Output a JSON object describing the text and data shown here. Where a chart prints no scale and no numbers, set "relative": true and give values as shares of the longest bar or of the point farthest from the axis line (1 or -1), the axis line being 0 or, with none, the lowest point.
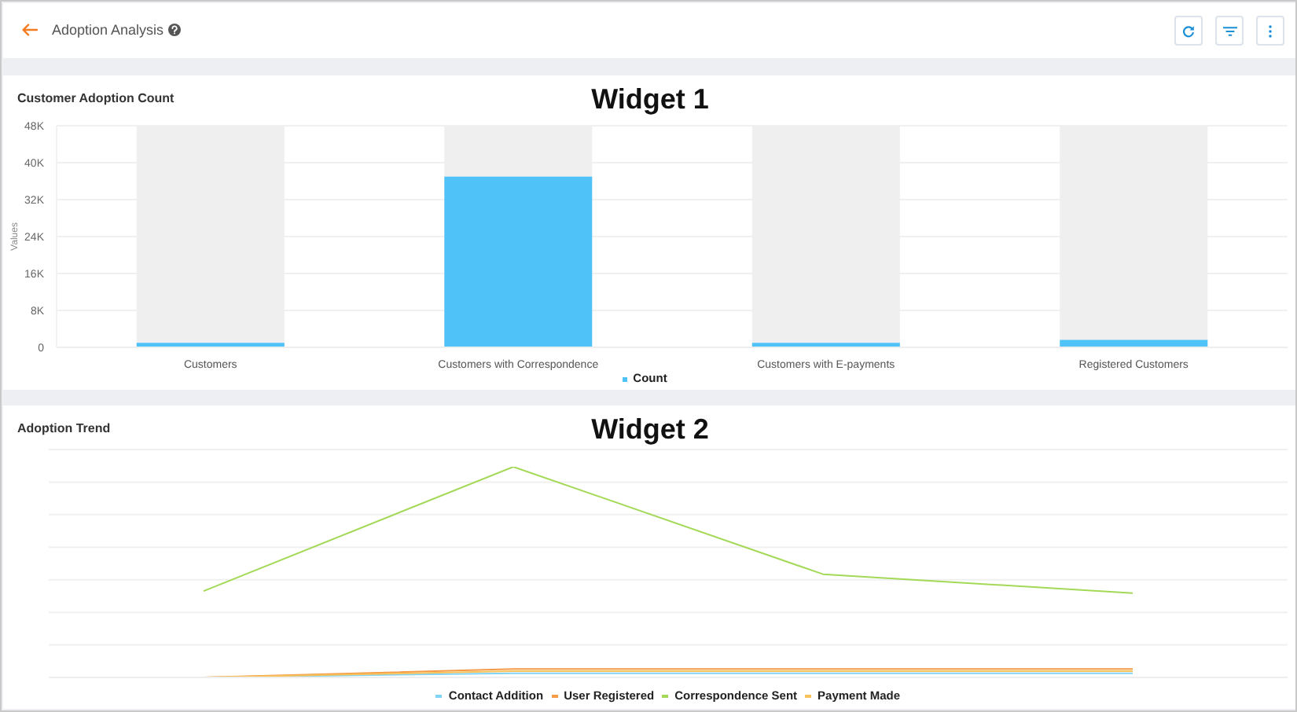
{
  "chart_data": [
    {
      "type": "bar",
      "title": "Customer Adoption Count",
      "annotations": [
        "Adoption Analysis",
        "Widget 1"
      ],
      "categories": [
        "Customers",
        "Customers with Correspondence",
        "Customers with E-payments",
        "Registered Customers"
      ],
      "series": [
        {
          "name": "Count",
          "color": "#4fc3f7",
          "values": [
            1000,
            37000,
            1000,
            1600
          ]
        }
      ],
      "ylabel": "Values",
      "ylim": [
        0,
        48000
      ],
      "yticks": [
        0,
        {
          "value": 8000,
          "label": "8K"
        },
        {
          "value": 16000,
          "label": "16K"
        },
        {
          "value": 24000,
          "label": "24K"
        },
        {
          "value": 32000,
          "label": "32K"
        },
        {
          "value": 40000,
          "label": "40K"
        },
        {
          "value": 48000,
          "label": "48K"
        }
      ],
      "grid": "y",
      "legend": "bottom"
    },
    {
      "type": "line",
      "title": "Adoption Trend",
      "annotations": [
        "Widget 2"
      ],
      "categories": [
        null,
        null,
        null,
        null
      ],
      "relative": true,
      "series": [
        {
          "name": "Contact Addition",
          "color": "#81d4f5",
          "values": [
            0,
            0.02,
            0.02,
            0.02
          ]
        },
        {
          "name": "User Registered",
          "color": "#f59a45",
          "values": [
            0,
            0.04,
            0.04,
            0.04
          ]
        },
        {
          "name": "Correspondence Sent",
          "color": "#a3d957",
          "values": [
            0.41,
            1,
            0.49,
            0.4
          ]
        },
        {
          "name": "Payment Made",
          "color": "#f7c15c",
          "values": [
            0,
            0.03,
            0.03,
            0.03
          ]
        }
      ],
      "grid": "y",
      "legend": "bottom",
      "marker": "none"
    }
  ]
}
